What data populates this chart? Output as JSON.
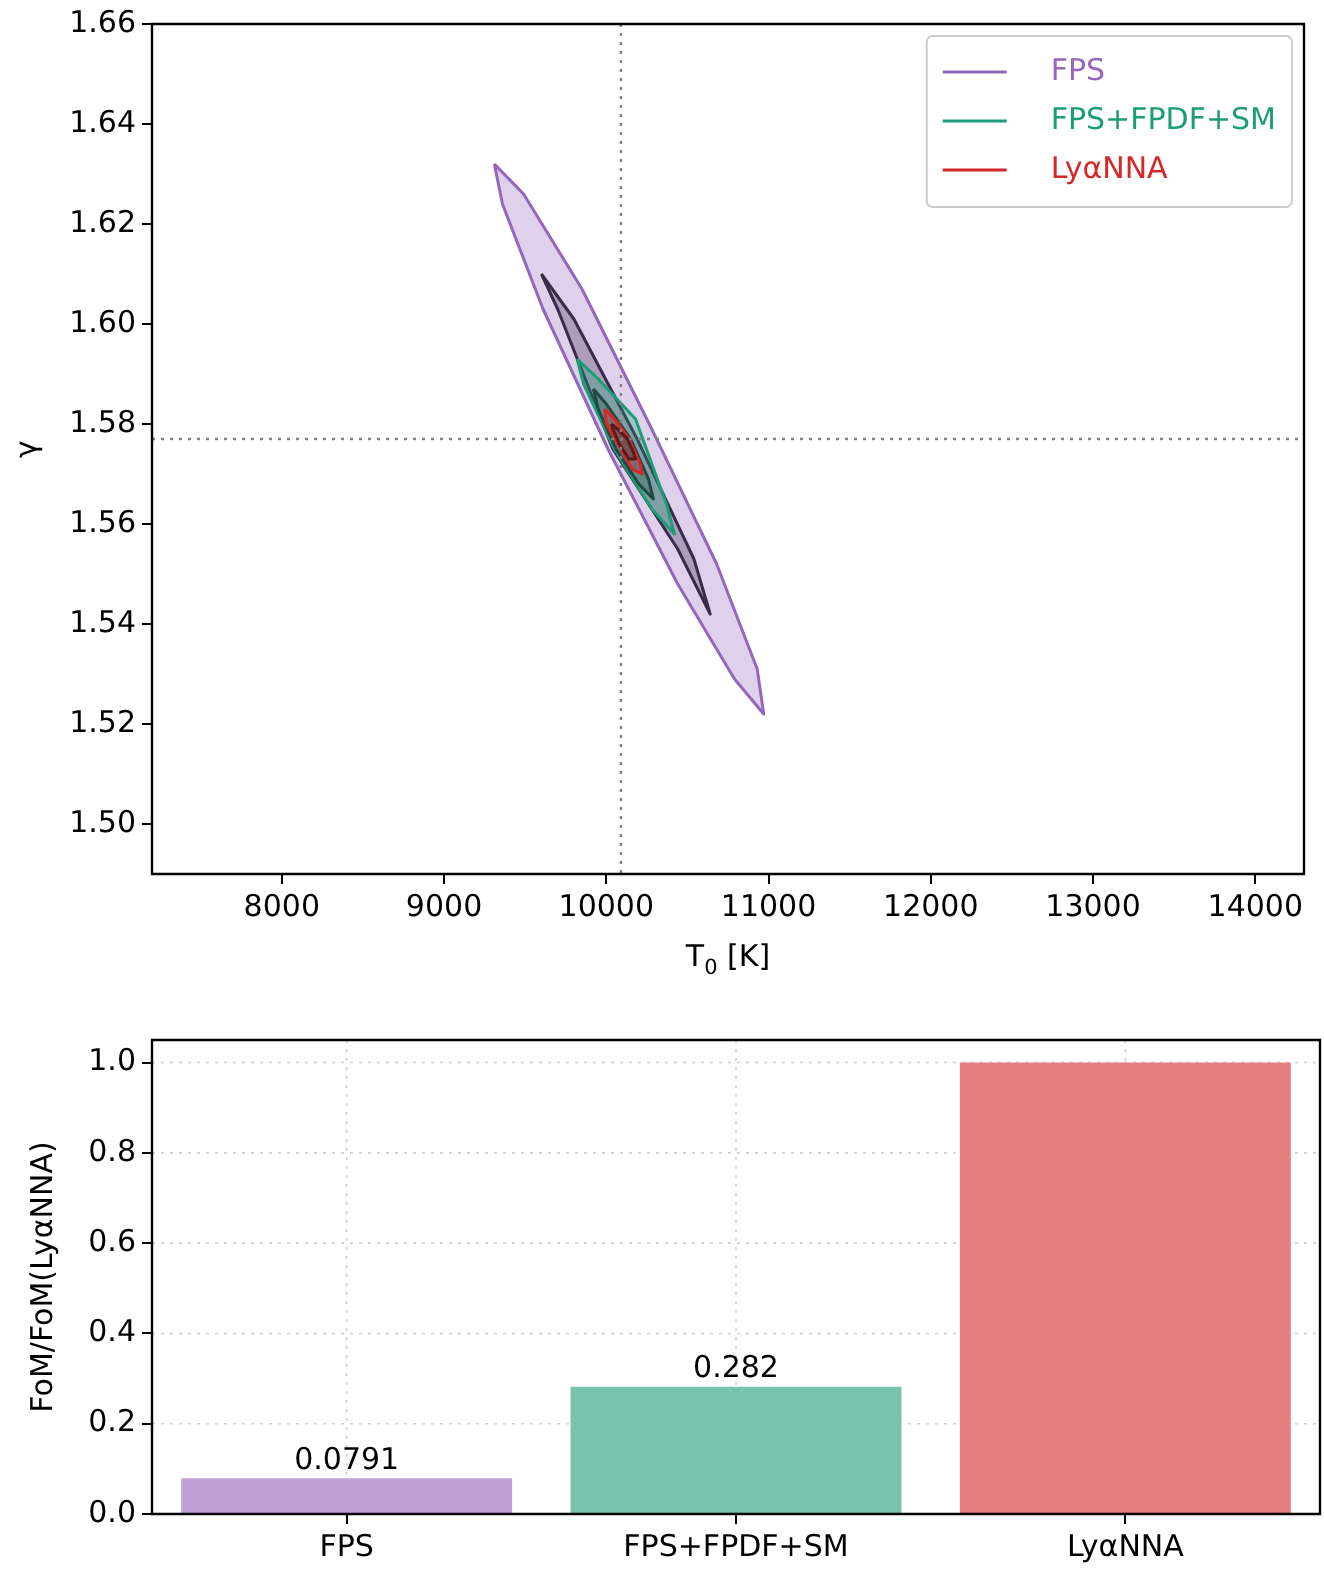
{
  "chart_data": [
    {
      "type": "area",
      "xlabel": "T$_{0}$ [K]",
      "ylabel": "γ",
      "xlim": [
        7200,
        14300
      ],
      "ylim": [
        1.49,
        1.66
      ],
      "xticks": [
        8000,
        9000,
        10000,
        11000,
        12000,
        13000,
        14000
      ],
      "yticks": [
        {
          "value": 1.5,
          "label": "1.50"
        },
        {
          "value": 1.52,
          "label": "1.52"
        },
        {
          "value": 1.54,
          "label": "1.54"
        },
        {
          "value": 1.56,
          "label": "1.56"
        },
        {
          "value": 1.58,
          "label": "1.58"
        },
        {
          "value": 1.6,
          "label": "1.60"
        },
        {
          "value": 1.62,
          "label": "1.62"
        },
        {
          "value": 1.64,
          "label": "1.64"
        },
        {
          "value": 1.66,
          "label": "1.66"
        }
      ],
      "legend": "top right",
      "ref_lines": [
        {
          "axis": "x",
          "value": 10090,
          "color": "#808080",
          "line_style": "dotted"
        },
        {
          "axis": "y",
          "value": 1.577,
          "color": "#808080",
          "line_style": "dotted"
        }
      ],
      "series": [
        {
          "name": "FPS",
          "color": "#9467bd",
          "x": [
            9310,
            9490,
            9850,
            10280,
            10680,
            10930,
            10970,
            10790,
            10440,
            10010,
            9610,
            9360,
            9310
          ],
          "values": [
            1.632,
            1.626,
            1.607,
            1.579,
            1.552,
            1.531,
            1.522,
            1.529,
            1.548,
            1.575,
            1.603,
            1.624,
            1.632
          ]
        },
        {
          "color": "#3b2b4b",
          "x": [
            9600,
            9800,
            10190,
            10540,
            10640,
            10440,
            10040,
            9700,
            9600
          ],
          "values": [
            1.61,
            1.601,
            1.577,
            1.553,
            1.542,
            1.555,
            1.575,
            1.603,
            1.61
          ]
        },
        {
          "name": "FPS+FPDF+SM",
          "color": "#1b9e77",
          "x": [
            9820,
            9950,
            10180,
            10370,
            10420,
            10280,
            10050,
            9860,
            9820
          ],
          "values": [
            1.593,
            1.589,
            1.581,
            1.564,
            1.558,
            1.563,
            1.575,
            1.588,
            1.593
          ]
        },
        {
          "color": "#1f4a40",
          "x": [
            9920,
            10000,
            10150,
            10260,
            10290,
            10200,
            10060,
            9950,
            9920
          ],
          "values": [
            1.587,
            1.584,
            1.577,
            1.569,
            1.565,
            1.568,
            1.575,
            1.583,
            1.587
          ]
        },
        {
          "name": "LyαNNA",
          "color": "#d62728",
          "x": [
            9990,
            10050,
            10140,
            10210,
            10220,
            10160,
            10070,
            10000,
            9990
          ],
          "values": [
            1.583,
            1.581,
            1.577,
            1.572,
            1.57,
            1.571,
            1.576,
            1.58,
            1.583
          ]
        },
        {
          "color": "#5a1a1a",
          "x": [
            10030,
            10070,
            10130,
            10170,
            10180,
            10140,
            10080,
            10040,
            10030
          ],
          "values": [
            1.58,
            1.579,
            1.577,
            1.574,
            1.573,
            1.573,
            1.576,
            1.579,
            1.58
          ]
        }
      ]
    },
    {
      "type": "bar",
      "ylabel": "FoM/FoM(LyαNNA)",
      "categories": [
        "FPS",
        "FPS+FPDF+SM",
        "LyαNNA"
      ],
      "values": [
        0.0791,
        0.282,
        1
      ],
      "colors": [
        "#c0a1d6",
        "#77c3ad",
        "#e67d7e"
      ],
      "value_labels": [
        "0.0791",
        "0.282",
        null
      ],
      "ylim": [
        0,
        1.05
      ],
      "yticks": [
        {
          "value": 0,
          "label": "0.0"
        },
        0.2,
        0.4,
        0.6,
        0.8,
        {
          "value": 1,
          "label": "1.0"
        }
      ],
      "grid": true
    }
  ]
}
